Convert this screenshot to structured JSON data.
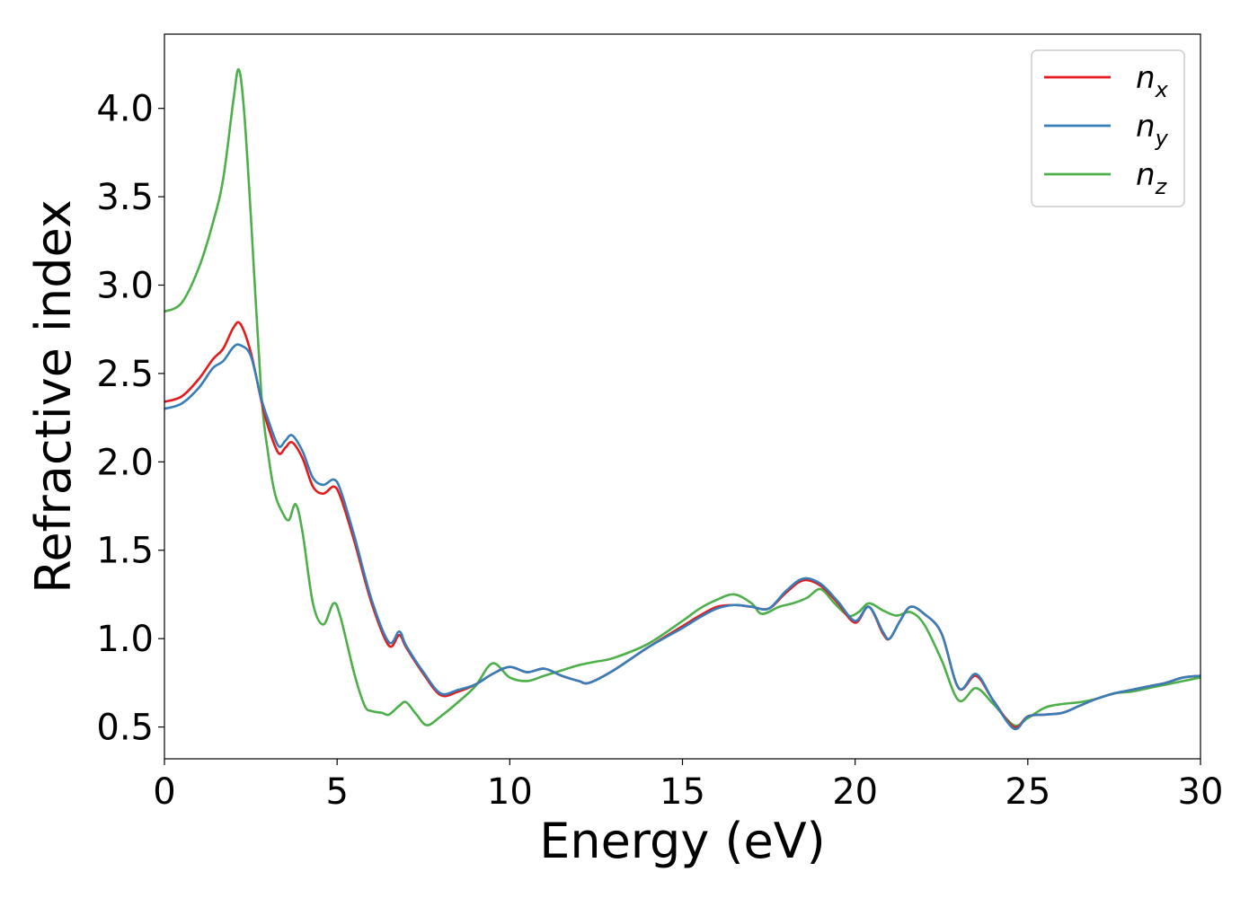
{
  "chart_data": {
    "type": "line",
    "xlabel": "Energy (eV)",
    "ylabel": "Refractive index",
    "xlim": [
      0,
      30
    ],
    "ylim": [
      0.32,
      4.42
    ],
    "xticks": [
      0,
      5,
      10,
      15,
      20,
      25,
      30
    ],
    "xtick_labels": [
      "0",
      "5",
      "10",
      "15",
      "20",
      "25",
      "30"
    ],
    "yticks": [
      0.5,
      1.0,
      1.5,
      2.0,
      2.5,
      3.0,
      3.5,
      4.0
    ],
    "ytick_labels": [
      "0.5",
      "1.0",
      "1.5",
      "2.0",
      "2.5",
      "3.0",
      "3.5",
      "4.0"
    ],
    "grid": false,
    "legend_position": "top-right",
    "series": [
      {
        "name": "n_x",
        "label_base": "n",
        "label_sub": "x",
        "color": "#e41a1c",
        "x": [
          0,
          0.5,
          1.0,
          1.4,
          1.7,
          2.0,
          2.2,
          2.5,
          2.8,
          3.0,
          3.3,
          3.5,
          3.7,
          4.0,
          4.3,
          4.6,
          4.9,
          5.1,
          5.5,
          6.0,
          6.5,
          6.8,
          7.0,
          7.5,
          8.0,
          8.5,
          9.0,
          9.5,
          10.0,
          10.5,
          11.0,
          11.5,
          12.0,
          12.3,
          13.0,
          14.0,
          15.0,
          15.5,
          16.0,
          16.5,
          17.0,
          17.5,
          18.0,
          18.5,
          19.0,
          19.5,
          20.0,
          20.4,
          20.8,
          21.0,
          21.3,
          21.6,
          22.0,
          22.5,
          23.0,
          23.5,
          24.0,
          24.6,
          25.0,
          25.5,
          26.0,
          26.5,
          27.0,
          27.5,
          28.0,
          28.5,
          29.0,
          29.5,
          30.0
        ],
        "y": [
          2.34,
          2.37,
          2.47,
          2.58,
          2.64,
          2.76,
          2.78,
          2.62,
          2.35,
          2.2,
          2.05,
          2.08,
          2.11,
          2.02,
          1.86,
          1.82,
          1.86,
          1.8,
          1.55,
          1.2,
          0.96,
          1.02,
          0.95,
          0.8,
          0.68,
          0.7,
          0.74,
          0.8,
          0.84,
          0.81,
          0.83,
          0.79,
          0.76,
          0.75,
          0.82,
          0.95,
          1.07,
          1.13,
          1.18,
          1.19,
          1.18,
          1.17,
          1.26,
          1.33,
          1.3,
          1.2,
          1.09,
          1.18,
          1.03,
          1.0,
          1.1,
          1.18,
          1.14,
          1.03,
          0.72,
          0.79,
          0.65,
          0.5,
          0.56,
          0.57,
          0.58,
          0.62,
          0.66,
          0.69,
          0.71,
          0.73,
          0.75,
          0.78,
          0.79
        ]
      },
      {
        "name": "n_y",
        "label_base": "n",
        "label_sub": "y",
        "color": "#377eb8",
        "x": [
          0,
          0.5,
          1.0,
          1.4,
          1.7,
          2.0,
          2.2,
          2.5,
          2.8,
          3.0,
          3.3,
          3.5,
          3.7,
          4.0,
          4.3,
          4.6,
          4.9,
          5.1,
          5.5,
          6.0,
          6.5,
          6.8,
          7.0,
          7.5,
          8.0,
          8.5,
          9.0,
          9.5,
          10.0,
          10.5,
          11.0,
          11.5,
          12.0,
          12.3,
          13.0,
          14.0,
          15.0,
          15.5,
          16.0,
          16.5,
          17.0,
          17.5,
          18.0,
          18.5,
          19.0,
          19.5,
          20.0,
          20.4,
          20.8,
          21.0,
          21.3,
          21.6,
          22.0,
          22.5,
          23.0,
          23.5,
          24.0,
          24.6,
          25.0,
          25.5,
          26.0,
          26.5,
          27.0,
          27.5,
          28.0,
          28.5,
          29.0,
          29.5,
          30.0
        ],
        "y": [
          2.3,
          2.33,
          2.42,
          2.53,
          2.57,
          2.65,
          2.66,
          2.6,
          2.36,
          2.24,
          2.09,
          2.12,
          2.15,
          2.06,
          1.91,
          1.87,
          1.9,
          1.84,
          1.58,
          1.22,
          0.98,
          1.04,
          0.96,
          0.81,
          0.69,
          0.71,
          0.74,
          0.8,
          0.84,
          0.81,
          0.83,
          0.79,
          0.76,
          0.75,
          0.82,
          0.95,
          1.06,
          1.12,
          1.17,
          1.19,
          1.18,
          1.17,
          1.27,
          1.34,
          1.31,
          1.21,
          1.1,
          1.18,
          1.04,
          1.0,
          1.1,
          1.18,
          1.14,
          1.03,
          0.72,
          0.8,
          0.65,
          0.49,
          0.56,
          0.57,
          0.58,
          0.62,
          0.66,
          0.69,
          0.71,
          0.73,
          0.75,
          0.78,
          0.79
        ]
      },
      {
        "name": "n_z",
        "label_base": "n",
        "label_sub": "z",
        "color": "#4daf4a",
        "x": [
          0,
          0.5,
          1.0,
          1.4,
          1.7,
          2.0,
          2.15,
          2.3,
          2.5,
          2.8,
          3.0,
          3.2,
          3.4,
          3.6,
          3.8,
          4.0,
          4.3,
          4.6,
          4.9,
          5.1,
          5.5,
          5.8,
          6.0,
          6.3,
          6.5,
          6.8,
          7.0,
          7.3,
          7.6,
          8.0,
          8.5,
          9.0,
          9.5,
          10.0,
          10.5,
          11.0,
          11.5,
          12.0,
          12.5,
          13.0,
          14.0,
          15.0,
          15.5,
          16.0,
          16.5,
          17.0,
          17.3,
          17.8,
          18.2,
          18.6,
          19.0,
          19.4,
          19.8,
          20.1,
          20.4,
          20.8,
          21.2,
          21.6,
          22.0,
          22.5,
          23.0,
          23.5,
          24.0,
          24.6,
          25.0,
          25.5,
          26.0,
          26.5,
          27.0,
          27.5,
          28.0,
          28.5,
          29.0,
          29.5,
          30.0
        ],
        "y": [
          2.85,
          2.9,
          3.1,
          3.35,
          3.6,
          4.05,
          4.22,
          4.0,
          3.4,
          2.4,
          2.05,
          1.82,
          1.72,
          1.67,
          1.76,
          1.6,
          1.2,
          1.08,
          1.2,
          1.12,
          0.8,
          0.62,
          0.59,
          0.58,
          0.57,
          0.62,
          0.64,
          0.57,
          0.51,
          0.56,
          0.64,
          0.73,
          0.86,
          0.78,
          0.76,
          0.79,
          0.82,
          0.85,
          0.87,
          0.89,
          0.97,
          1.1,
          1.17,
          1.22,
          1.25,
          1.2,
          1.14,
          1.18,
          1.2,
          1.23,
          1.28,
          1.2,
          1.13,
          1.15,
          1.2,
          1.16,
          1.13,
          1.15,
          1.08,
          0.88,
          0.65,
          0.72,
          0.63,
          0.51,
          0.55,
          0.61,
          0.63,
          0.64,
          0.66,
          0.69,
          0.7,
          0.72,
          0.74,
          0.76,
          0.78
        ]
      }
    ]
  }
}
